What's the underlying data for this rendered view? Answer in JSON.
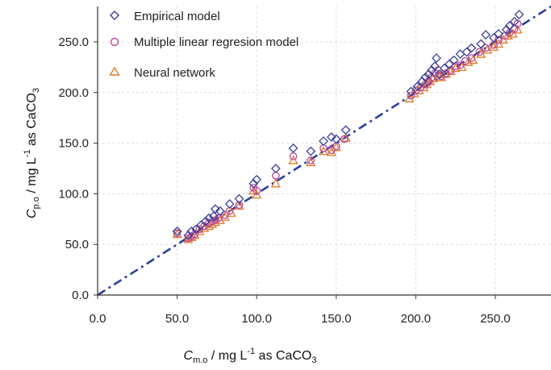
{
  "chart_data": {
    "type": "scatter",
    "title": "",
    "xlabel": {
      "main": "C",
      "sub": "m.o",
      "unit_pre": " / mg L",
      "sup": "-1",
      "unit_post": " as CaCO",
      "unit_sub": "3"
    },
    "ylabel": {
      "main": "C",
      "sub": "p.o",
      "unit_pre": " / mg L",
      "sup": "-1",
      "unit_post": " as CaCO",
      "unit_sub": "3"
    },
    "xlim": [
      0,
      285
    ],
    "ylim": [
      0,
      285
    ],
    "xticks": [
      0,
      50,
      100,
      150,
      200,
      250
    ],
    "yticks": [
      0,
      50,
      100,
      150,
      200,
      250
    ],
    "xtick_labels": [
      "0.0",
      "50.0",
      "100.0",
      "150.0",
      "200.0",
      "250.0"
    ],
    "ytick_labels": [
      "0.0",
      "50.0",
      "100.0",
      "150.0",
      "200.0",
      "250.0"
    ],
    "grid": true,
    "legend_position": "top-left",
    "reference_line": {
      "style": "dash-dot",
      "x": [
        0,
        285
      ],
      "y": [
        0,
        285
      ],
      "color": "#2b3f9e"
    },
    "series": [
      {
        "name": "Empirical model",
        "marker": "diamond",
        "color": "#3b3f9a",
        "points": [
          [
            50,
            63
          ],
          [
            57,
            59
          ],
          [
            59,
            63
          ],
          [
            62,
            65
          ],
          [
            65,
            69
          ],
          [
            68,
            73
          ],
          [
            70,
            76
          ],
          [
            73,
            78
          ],
          [
            74,
            85
          ],
          [
            77,
            83
          ],
          [
            83,
            90
          ],
          [
            89,
            95
          ],
          [
            98,
            110
          ],
          [
            100,
            114
          ],
          [
            112,
            125
          ],
          [
            123,
            145
          ],
          [
            134,
            142
          ],
          [
            142,
            152
          ],
          [
            147,
            156
          ],
          [
            150,
            154
          ],
          [
            156,
            163
          ],
          [
            197,
            201
          ],
          [
            201,
            206
          ],
          [
            204,
            211
          ],
          [
            206,
            215
          ],
          [
            208,
            218
          ],
          [
            210,
            222
          ],
          [
            212,
            226
          ],
          [
            213,
            234
          ],
          [
            215,
            218
          ],
          [
            218,
            224
          ],
          [
            221,
            228
          ],
          [
            224,
            232
          ],
          [
            228,
            238
          ],
          [
            232,
            240
          ],
          [
            235,
            244
          ],
          [
            241,
            248
          ],
          [
            244,
            257
          ],
          [
            249,
            254
          ],
          [
            252,
            258
          ],
          [
            257,
            262
          ],
          [
            259,
            266
          ],
          [
            262,
            270
          ],
          [
            265,
            277
          ]
        ]
      },
      {
        "name": "Multiple linear regresion model",
        "marker": "circle",
        "color": "#c0449a",
        "points": [
          [
            50,
            61
          ],
          [
            57,
            56
          ],
          [
            59,
            58
          ],
          [
            61,
            60
          ],
          [
            64,
            65
          ],
          [
            67,
            68
          ],
          [
            70,
            71
          ],
          [
            72,
            73
          ],
          [
            74,
            74
          ],
          [
            76,
            76
          ],
          [
            80,
            79
          ],
          [
            83,
            83
          ],
          [
            89,
            89
          ],
          [
            98,
            106
          ],
          [
            100,
            103
          ],
          [
            112,
            118
          ],
          [
            123,
            137
          ],
          [
            134,
            133
          ],
          [
            142,
            145
          ],
          [
            147,
            143
          ],
          [
            150,
            147
          ],
          [
            155,
            154
          ],
          [
            197,
            197
          ],
          [
            200,
            202
          ],
          [
            203,
            205
          ],
          [
            206,
            208
          ],
          [
            208,
            211
          ],
          [
            210,
            215
          ],
          [
            212,
            219
          ],
          [
            214,
            222
          ],
          [
            216,
            216
          ],
          [
            219,
            219
          ],
          [
            222,
            222
          ],
          [
            225,
            226
          ],
          [
            228,
            227
          ],
          [
            231,
            231
          ],
          [
            235,
            234
          ],
          [
            240,
            240
          ],
          [
            244,
            244
          ],
          [
            249,
            247
          ],
          [
            252,
            252
          ],
          [
            256,
            256
          ],
          [
            259,
            259
          ],
          [
            262,
            263
          ],
          [
            264,
            268
          ]
        ]
      },
      {
        "name": "Neural network",
        "marker": "triangle",
        "color": "#e07a2a",
        "points": [
          [
            50,
            60
          ],
          [
            57,
            55
          ],
          [
            59,
            57
          ],
          [
            61,
            59
          ],
          [
            64,
            63
          ],
          [
            67,
            66
          ],
          [
            70,
            68
          ],
          [
            72,
            70
          ],
          [
            74,
            72
          ],
          [
            77,
            74
          ],
          [
            80,
            77
          ],
          [
            84,
            81
          ],
          [
            89,
            88
          ],
          [
            98,
            103
          ],
          [
            100,
            99
          ],
          [
            112,
            110
          ],
          [
            123,
            133
          ],
          [
            134,
            131
          ],
          [
            142,
            142
          ],
          [
            147,
            141
          ],
          [
            150,
            146
          ],
          [
            156,
            155
          ],
          [
            196,
            194
          ],
          [
            199,
            199
          ],
          [
            202,
            202
          ],
          [
            205,
            205
          ],
          [
            207,
            208
          ],
          [
            209,
            211
          ],
          [
            211,
            214
          ],
          [
            214,
            218
          ],
          [
            216,
            215
          ],
          [
            219,
            218
          ],
          [
            222,
            221
          ],
          [
            225,
            224
          ],
          [
            229,
            225
          ],
          [
            233,
            230
          ],
          [
            236,
            232
          ],
          [
            241,
            238
          ],
          [
            245,
            242
          ],
          [
            249,
            245
          ],
          [
            252,
            248
          ],
          [
            255,
            252
          ],
          [
            258,
            256
          ],
          [
            261,
            258
          ],
          [
            264,
            262
          ]
        ]
      }
    ]
  }
}
